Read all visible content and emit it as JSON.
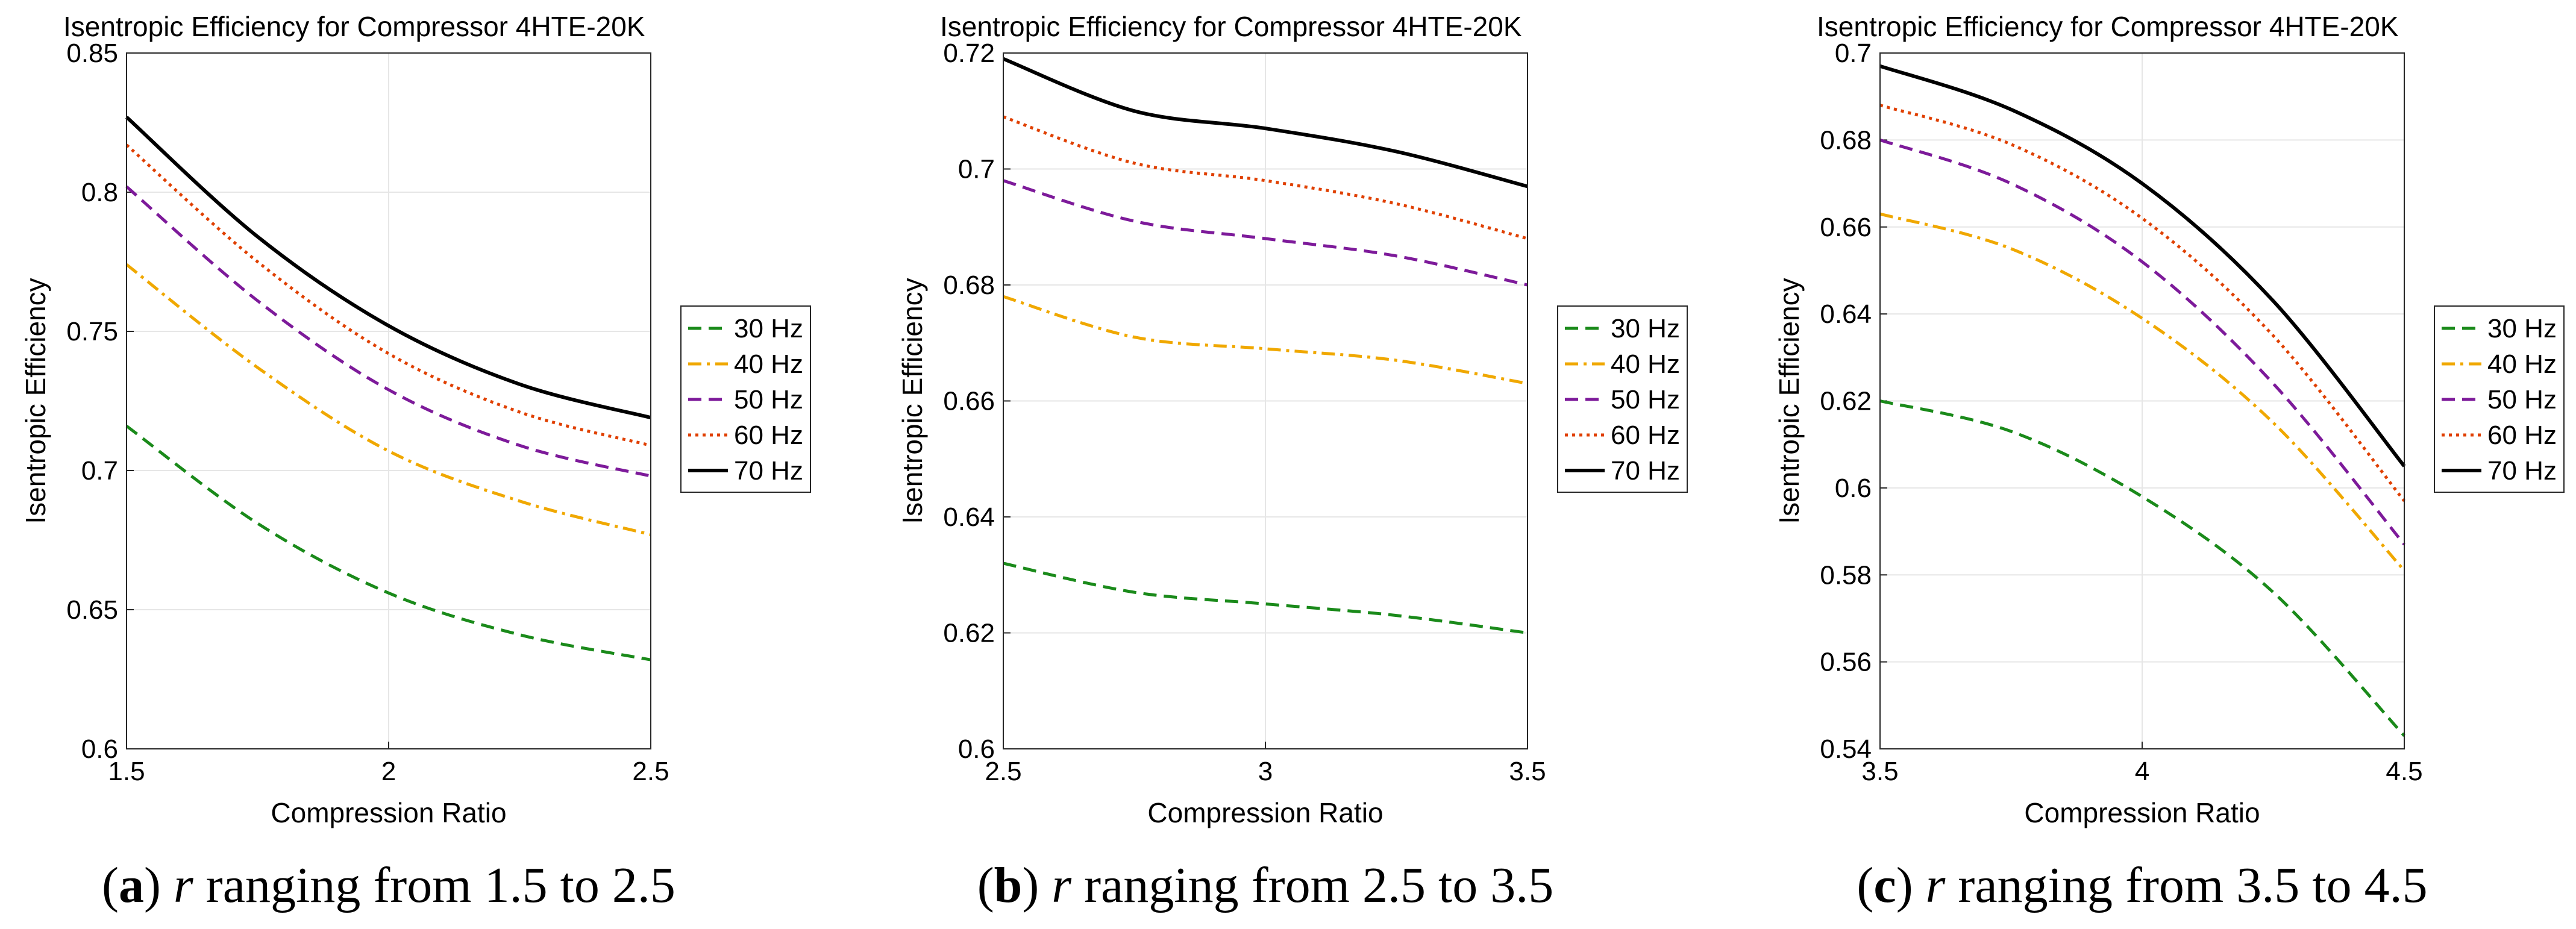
{
  "chart_data": [
    {
      "type": "line",
      "panel": "a",
      "title": "Isentropic Efficiency for Compressor 4HTE-20K",
      "xlabel": "Compression Ratio",
      "ylabel": "Isentropic Efficiency",
      "xlim": [
        1.5,
        2.5
      ],
      "ylim": [
        0.6,
        0.85
      ],
      "xticks": [
        "1.5",
        "2",
        "2.5"
      ],
      "yticks": [
        "0.6",
        "0.65",
        "0.7",
        "0.75",
        "0.8",
        "0.85"
      ],
      "grid": true,
      "legend_position": "right",
      "x": [
        1.5,
        1.75,
        2.0,
        2.25,
        2.5
      ],
      "series": [
        {
          "name": "30 Hz",
          "values": [
            0.716,
            0.681,
            0.656,
            0.641,
            0.632
          ]
        },
        {
          "name": "40 Hz",
          "values": [
            0.774,
            0.737,
            0.707,
            0.689,
            0.677
          ]
        },
        {
          "name": "50 Hz",
          "values": [
            0.802,
            0.761,
            0.729,
            0.709,
            0.698
          ]
        },
        {
          "name": "60 Hz",
          "values": [
            0.817,
            0.775,
            0.742,
            0.721,
            0.709
          ]
        },
        {
          "name": "70 Hz",
          "values": [
            0.827,
            0.784,
            0.752,
            0.731,
            0.719
          ]
        }
      ],
      "caption": {
        "letter": "a",
        "variable": "r",
        "text": " ranging from 1.5 to 2.5"
      }
    },
    {
      "type": "line",
      "panel": "b",
      "title": "Isentropic Efficiency for Compressor 4HTE-20K",
      "xlabel": "Compression Ratio",
      "ylabel": "Isentropic Efficiency",
      "xlim": [
        2.5,
        3.5
      ],
      "ylim": [
        0.6,
        0.72
      ],
      "xticks": [
        "2.5",
        "3",
        "3.5"
      ],
      "yticks": [
        "0.6",
        "0.62",
        "0.64",
        "0.66",
        "0.68",
        "0.7",
        "0.72"
      ],
      "grid": true,
      "legend_position": "right",
      "x": [
        2.5,
        2.75,
        3.0,
        3.25,
        3.5
      ],
      "series": [
        {
          "name": "30 Hz",
          "values": [
            0.632,
            0.627,
            0.625,
            0.623,
            0.62
          ]
        },
        {
          "name": "40 Hz",
          "values": [
            0.678,
            0.671,
            0.669,
            0.667,
            0.663
          ]
        },
        {
          "name": "50 Hz",
          "values": [
            0.698,
            0.691,
            0.688,
            0.685,
            0.68
          ]
        },
        {
          "name": "60 Hz",
          "values": [
            0.709,
            0.701,
            0.698,
            0.694,
            0.688
          ]
        },
        {
          "name": "70 Hz",
          "values": [
            0.719,
            0.71,
            0.707,
            0.703,
            0.697
          ]
        }
      ],
      "caption": {
        "letter": "b",
        "variable": "r",
        "text": " ranging from 2.5 to 3.5"
      }
    },
    {
      "type": "line",
      "panel": "c",
      "title": "Isentropic Efficiency for Compressor 4HTE-20K",
      "xlabel": "Compression Ratio",
      "ylabel": "Isentropic Efficiency",
      "xlim": [
        3.5,
        4.5
      ],
      "ylim": [
        0.54,
        0.7
      ],
      "xticks": [
        "3.5",
        "4",
        "4.5"
      ],
      "yticks": [
        "0.54",
        "0.56",
        "0.58",
        "0.6",
        "0.62",
        "0.64",
        "0.66",
        "0.68",
        "0.7"
      ],
      "grid": true,
      "legend_position": "right",
      "x": [
        3.5,
        3.75,
        4.0,
        4.25,
        4.5
      ],
      "series": [
        {
          "name": "30 Hz",
          "values": [
            0.62,
            0.613,
            0.598,
            0.576,
            0.543
          ]
        },
        {
          "name": "40 Hz",
          "values": [
            0.663,
            0.655,
            0.639,
            0.615,
            0.581
          ]
        },
        {
          "name": "50 Hz",
          "values": [
            0.68,
            0.67,
            0.652,
            0.624,
            0.587
          ]
        },
        {
          "name": "60 Hz",
          "values": [
            0.688,
            0.679,
            0.662,
            0.635,
            0.597
          ]
        },
        {
          "name": "70 Hz",
          "values": [
            0.697,
            0.687,
            0.67,
            0.643,
            0.605
          ]
        }
      ],
      "caption": {
        "letter": "c",
        "variable": "r",
        "text": " ranging from 3.5 to 4.5"
      }
    }
  ],
  "series_style": [
    {
      "color": "#1a8a1a",
      "dash": "dashed"
    },
    {
      "color": "#f0a800",
      "dash": "dashdot"
    },
    {
      "color": "#7d1a9a",
      "dash": "dashed"
    },
    {
      "color": "#e04000",
      "dash": "dotted"
    },
    {
      "color": "#000000",
      "dash": "solid"
    }
  ]
}
